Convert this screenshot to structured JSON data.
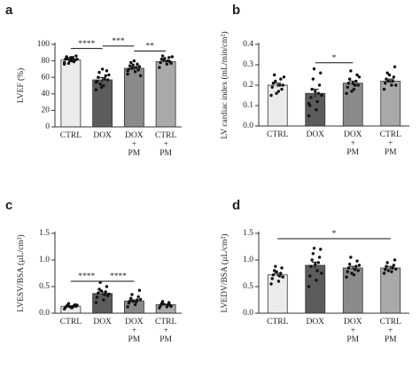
{
  "chart_data": [
    {
      "type": "bar",
      "panel": "a",
      "ylabel": "LVEF (%)",
      "categories": [
        [
          "CTRL"
        ],
        [
          "DOX"
        ],
        [
          "DOX",
          "+",
          "PM"
        ],
        [
          "CTRL",
          "+",
          "PM"
        ]
      ],
      "colors": [
        "#ebebeb",
        "#5c5c5c",
        "#8a8a8a",
        "#a9a9a9"
      ],
      "values": [
        81,
        57,
        71,
        79
      ],
      "errors": [
        1.2,
        2.8,
        1.8,
        1.5
      ],
      "points": [
        [
          78,
          80,
          82,
          84,
          85,
          79,
          83,
          81,
          77,
          86,
          80,
          82,
          84,
          76
        ],
        [
          45,
          50,
          55,
          58,
          60,
          62,
          66,
          68,
          52,
          57,
          48,
          63,
          70,
          54
        ],
        [
          64,
          67,
          70,
          72,
          74,
          76,
          78,
          69,
          71,
          73,
          75,
          62,
          80,
          68
        ],
        [
          72,
          76,
          78,
          80,
          82,
          84,
          86,
          79,
          81,
          77,
          83,
          85
        ]
      ],
      "ylim": [
        0,
        100
      ],
      "yticks": [
        0,
        20,
        40,
        60,
        80,
        100
      ],
      "significance": [
        {
          "between": [
            0,
            1
          ],
          "y": 95,
          "label": "****"
        },
        {
          "between": [
            1,
            2
          ],
          "y": 98,
          "label": "***"
        },
        {
          "between": [
            2,
            3
          ],
          "y": 92,
          "label": "**"
        }
      ]
    },
    {
      "type": "bar",
      "panel": "b",
      "ylabel": "LV cardiac index (mL/min/cm²)",
      "categories": [
        [
          "CTRL"
        ],
        [
          "DOX"
        ],
        [
          "DOX",
          "+",
          "PM"
        ],
        [
          "CTRL",
          "+",
          "PM"
        ]
      ],
      "colors": [
        "#ebebeb",
        "#5c5c5c",
        "#8a8a8a",
        "#a9a9a9"
      ],
      "values": [
        0.2,
        0.16,
        0.21,
        0.22
      ],
      "errors": [
        0.01,
        0.02,
        0.01,
        0.01
      ],
      "points": [
        [
          0.15,
          0.17,
          0.19,
          0.2,
          0.21,
          0.23,
          0.25,
          0.18,
          0.22,
          0.2,
          0.16,
          0.24
        ],
        [
          0.05,
          0.08,
          0.1,
          0.12,
          0.14,
          0.16,
          0.18,
          0.2,
          0.23,
          0.26,
          0.28,
          0.15,
          0.17,
          0.11
        ],
        [
          0.16,
          0.18,
          0.19,
          0.2,
          0.21,
          0.22,
          0.23,
          0.25,
          0.27,
          0.2,
          0.17,
          0.24,
          0.21
        ],
        [
          0.18,
          0.2,
          0.21,
          0.22,
          0.23,
          0.24,
          0.26,
          0.29,
          0.22,
          0.2,
          0.25
        ]
      ],
      "ylim": [
        0,
        0.4
      ],
      "yticks": [
        {
          "value": 0,
          "label": "0.0"
        },
        0.1,
        0.2,
        0.3,
        0.4
      ],
      "significance": [
        {
          "between": [
            1,
            2
          ],
          "y": 0.31,
          "label": "*"
        }
      ]
    },
    {
      "type": "bar",
      "panel": "c",
      "ylabel": "LVESV/BSA (µL/cm²)",
      "categories": [
        [
          "CTRL"
        ],
        [
          "DOX"
        ],
        [
          "DOX",
          "+",
          "PM"
        ],
        [
          "CTRL",
          "+",
          "PM"
        ]
      ],
      "colors": [
        "#ebebeb",
        "#5c5c5c",
        "#8a8a8a",
        "#a9a9a9"
      ],
      "values": [
        0.13,
        0.37,
        0.23,
        0.16
      ],
      "errors": [
        0.01,
        0.03,
        0.02,
        0.01
      ],
      "points": [
        [
          0.08,
          0.1,
          0.11,
          0.12,
          0.13,
          0.14,
          0.15,
          0.16,
          0.18,
          0.13,
          0.12,
          0.15
        ],
        [
          0.2,
          0.25,
          0.3,
          0.35,
          0.38,
          0.4,
          0.45,
          0.5,
          0.58,
          0.33,
          0.42,
          0.36
        ],
        [
          0.12,
          0.16,
          0.19,
          0.21,
          0.23,
          0.25,
          0.28,
          0.31,
          0.35,
          0.43,
          0.22,
          0.26
        ],
        [
          0.1,
          0.12,
          0.14,
          0.16,
          0.18,
          0.2,
          0.22,
          0.15,
          0.17,
          0.13
        ]
      ],
      "ylim": [
        0,
        1.5
      ],
      "yticks": [
        {
          "value": 0,
          "label": "0.0"
        },
        0.5,
        {
          "value": 1,
          "label": "1.0"
        },
        1.5
      ],
      "significance": [
        {
          "between": [
            0,
            1
          ],
          "y": 0.6,
          "label": "****"
        },
        {
          "between": [
            1,
            2
          ],
          "y": 0.6,
          "label": "****"
        }
      ]
    },
    {
      "type": "bar",
      "panel": "d",
      "ylabel": "LVEDV/BSA (µL/cm²)",
      "categories": [
        [
          "CTRL"
        ],
        [
          "DOX"
        ],
        [
          "DOX",
          "+",
          "PM"
        ],
        [
          "CTRL",
          "+",
          "PM"
        ]
      ],
      "colors": [
        "#ebebeb",
        "#5c5c5c",
        "#8a8a8a",
        "#a9a9a9"
      ],
      "values": [
        0.72,
        0.9,
        0.85,
        0.85
      ],
      "errors": [
        0.03,
        0.06,
        0.03,
        0.03
      ],
      "points": [
        [
          0.55,
          0.6,
          0.65,
          0.7,
          0.72,
          0.75,
          0.8,
          0.85,
          0.88,
          0.68,
          0.78
        ],
        [
          0.5,
          0.62,
          0.7,
          0.8,
          0.88,
          0.95,
          1.0,
          1.05,
          1.12,
          1.2,
          1.22,
          0.75,
          0.92
        ],
        [
          0.68,
          0.72,
          0.78,
          0.82,
          0.85,
          0.88,
          0.92,
          0.98,
          1.05,
          0.8,
          0.75,
          0.9
        ],
        [
          0.75,
          0.78,
          0.82,
          0.85,
          0.88,
          0.9,
          0.95,
          1.0,
          0.8,
          0.83
        ]
      ],
      "ylim": [
        0,
        1.5
      ],
      "yticks": [
        {
          "value": 0,
          "label": "0.0"
        },
        0.5,
        {
          "value": 1,
          "label": "1.0"
        },
        1.5
      ],
      "significance": [
        {
          "between": [
            0,
            3
          ],
          "y": 1.4,
          "label": "*"
        }
      ]
    }
  ]
}
